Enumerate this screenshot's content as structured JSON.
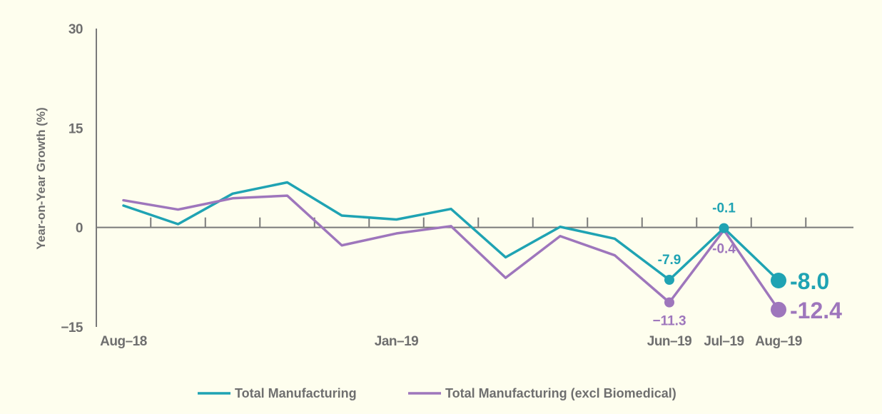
{
  "chart_data": {
    "type": "line",
    "title": "",
    "xlabel": "",
    "ylabel": "Year-on-Year Growth (%)",
    "ylim": [
      -15,
      30
    ],
    "y_ticks": [
      30,
      15,
      0,
      -15
    ],
    "y_tick_labels": [
      "30",
      "15",
      "0",
      "−15"
    ],
    "x": [
      "Aug-18",
      "Sep-18",
      "Oct-18",
      "Nov-18",
      "Dec-18",
      "Jan-19",
      "Feb-19",
      "Mar-19",
      "Apr-19",
      "May-19",
      "Jun-19",
      "Jul-19",
      "Aug-19"
    ],
    "x_tick_labels": [
      {
        "index": 0,
        "label": "Aug–18"
      },
      {
        "index": 5,
        "label": "Jan–19"
      },
      {
        "index": 10,
        "label": "Jun–19"
      },
      {
        "index": 11,
        "label": "Jul–19"
      },
      {
        "index": 12,
        "label": "Aug–19"
      }
    ],
    "grid": false,
    "legend_position": "bottom",
    "series": [
      {
        "name": "Total Manufacturing",
        "color": "#1fa3b3",
        "values": [
          3.3,
          0.5,
          5.1,
          6.8,
          1.8,
          1.2,
          2.8,
          -4.5,
          0.1,
          -1.7,
          -7.9,
          -0.1,
          -8.0
        ]
      },
      {
        "name": "Total Manufacturing (excl Biomedical)",
        "color": "#9e76bc",
        "values": [
          4.1,
          2.7,
          4.4,
          4.8,
          -2.7,
          -0.9,
          0.2,
          -7.6,
          -1.3,
          -4.2,
          -11.3,
          -0.4,
          -12.4
        ]
      }
    ],
    "annotations": [
      {
        "series": 0,
        "index": 10,
        "text": "-7.9",
        "position": "above",
        "size": "small",
        "marker": true
      },
      {
        "series": 0,
        "index": 11,
        "text": "-0.1",
        "position": "above",
        "size": "small",
        "marker": true
      },
      {
        "series": 0,
        "index": 12,
        "text": "-8.0",
        "position": "right",
        "size": "large",
        "marker": true
      },
      {
        "series": 1,
        "index": 10,
        "text": "−11.3",
        "position": "below",
        "size": "small",
        "marker": true
      },
      {
        "series": 1,
        "index": 11,
        "text": "-0.4",
        "position": "below",
        "size": "small",
        "marker": false
      },
      {
        "series": 1,
        "index": 12,
        "text": "-12.4",
        "position": "right",
        "size": "large",
        "marker": true
      }
    ]
  }
}
